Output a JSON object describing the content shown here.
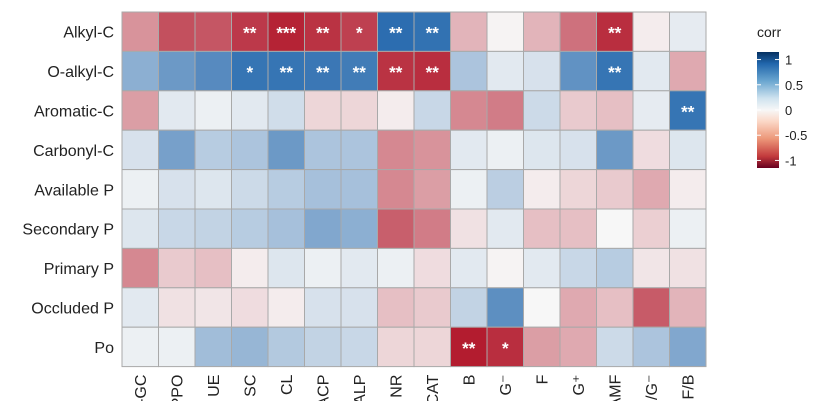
{
  "chart_data": {
    "type": "heatmap",
    "rows": [
      "Alkyl-C",
      "O-alkyl-C",
      "Aromatic-C",
      "Carbonyl-C",
      "Available P",
      "Secondary P",
      "Primary P",
      "Occluded P",
      "Po"
    ],
    "columns": [
      "β-GC",
      "PPO",
      "UE",
      "SC",
      "CL",
      "ACP",
      "ALP",
      "NR",
      "CAT",
      "B",
      "G⁻",
      "F",
      "G⁺",
      "AMF",
      "G⁺/G⁻",
      "F/B"
    ],
    "values": [
      [
        -0.45,
        -0.75,
        -0.72,
        -0.85,
        -0.95,
        -0.88,
        -0.82,
        0.95,
        0.92,
        -0.3,
        -0.02,
        -0.3,
        -0.6,
        -0.9,
        -0.05,
        0.08
      ],
      [
        0.5,
        0.65,
        0.75,
        0.9,
        0.9,
        0.88,
        0.85,
        -0.88,
        -0.9,
        0.35,
        0.1,
        0.15,
        0.7,
        0.9,
        0.1,
        -0.35
      ],
      [
        -0.4,
        0.1,
        0.05,
        0.1,
        0.18,
        -0.15,
        -0.15,
        -0.05,
        0.22,
        -0.5,
        -0.55,
        0.2,
        -0.2,
        -0.25,
        0.08,
        0.9
      ],
      [
        0.15,
        0.6,
        0.3,
        0.35,
        0.65,
        0.35,
        0.35,
        -0.5,
        -0.45,
        0.1,
        0.05,
        0.12,
        0.15,
        0.65,
        -0.12,
        0.12
      ],
      [
        0.05,
        0.15,
        0.12,
        0.2,
        0.3,
        0.38,
        0.38,
        -0.5,
        -0.4,
        0.05,
        0.28,
        -0.05,
        -0.15,
        -0.2,
        -0.35,
        -0.05
      ],
      [
        0.12,
        0.22,
        0.25,
        0.3,
        0.38,
        0.55,
        0.5,
        -0.68,
        -0.55,
        -0.1,
        0.1,
        -0.25,
        -0.25,
        0.0,
        -0.18,
        0.05
      ],
      [
        -0.5,
        -0.2,
        -0.25,
        -0.05,
        0.12,
        0.05,
        0.1,
        0.05,
        -0.12,
        0.1,
        -0.02,
        0.1,
        0.22,
        0.3,
        -0.08,
        -0.1
      ],
      [
        0.1,
        -0.1,
        -0.08,
        -0.12,
        -0.05,
        0.15,
        0.15,
        -0.25,
        -0.2,
        0.25,
        0.72,
        0.0,
        -0.35,
        -0.25,
        -0.7,
        -0.3
      ],
      [
        0.05,
        0.05,
        0.4,
        0.45,
        0.32,
        0.25,
        0.22,
        -0.15,
        -0.15,
        -0.98,
        -0.9,
        -0.4,
        -0.35,
        0.2,
        0.35,
        0.55
      ]
    ],
    "significance": [
      [
        "",
        "",
        "",
        "**",
        "***",
        "**",
        "*",
        "**",
        "**",
        "",
        "",
        "",
        "",
        "**",
        "",
        ""
      ],
      [
        "",
        "",
        "",
        "*",
        "**",
        "**",
        "**",
        "**",
        "**",
        "",
        "",
        "",
        "",
        "**",
        "",
        ""
      ],
      [
        "",
        "",
        "",
        "",
        "",
        "",
        "",
        "",
        "",
        "",
        "",
        "",
        "",
        "",
        "",
        "**"
      ],
      [
        "",
        "",
        "",
        "",
        "",
        "",
        "",
        "",
        "",
        "",
        "",
        "",
        "",
        "",
        "",
        ""
      ],
      [
        "",
        "",
        "",
        "",
        "",
        "",
        "",
        "",
        "",
        "",
        "",
        "",
        "",
        "",
        "",
        ""
      ],
      [
        "",
        "",
        "",
        "",
        "",
        "",
        "",
        "",
        "",
        "",
        "",
        "",
        "",
        "",
        "",
        ""
      ],
      [
        "",
        "",
        "",
        "",
        "",
        "",
        "",
        "",
        "",
        "",
        "",
        "",
        "",
        "",
        "",
        ""
      ],
      [
        "",
        "",
        "",
        "",
        "",
        "",
        "",
        "",
        "",
        "",
        "",
        "",
        "",
        "",
        "",
        ""
      ],
      [
        "",
        "",
        "",
        "",
        "",
        "",
        "",
        "",
        "",
        "**",
        "*",
        "",
        "",
        "",
        "",
        ""
      ]
    ],
    "legend": {
      "title": "corr",
      "ticks": [
        1,
        0.5,
        0,
        -0.5,
        -1
      ],
      "tick_labels": [
        "1",
        "0.5",
        "0",
        "-0.5",
        "-1"
      ],
      "placement": "right"
    },
    "value_range": [
      -1,
      1
    ],
    "colors": {
      "negative": "#b2182b",
      "mid": "#f7f7f7",
      "positive": "#2166ac"
    }
  }
}
